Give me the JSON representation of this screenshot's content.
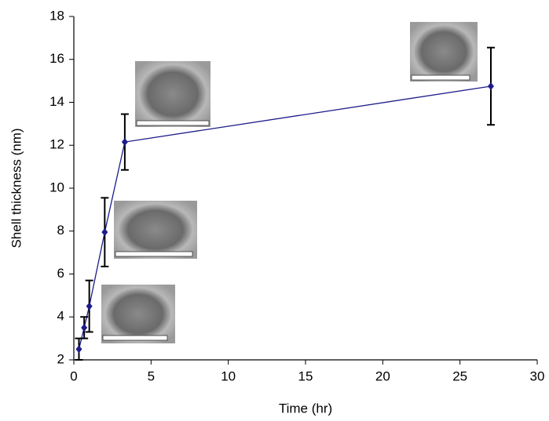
{
  "chart_data": {
    "type": "line",
    "x_label": "Time (hr)",
    "y_label": "Shell thickness (nm)",
    "x": [
      0.33,
      0.67,
      1,
      2,
      3.3,
      27
    ],
    "series": [
      {
        "color": "#1c1c8a",
        "values": [
          2.5,
          3.5,
          4.5,
          7.95,
          12.15,
          14.75
        ],
        "errors": [
          0.5,
          0.5,
          1.2,
          1.6,
          1.3,
          1.8
        ]
      }
    ],
    "xlim": [
      0,
      30
    ],
    "xticks": [
      0,
      5,
      10,
      15,
      20,
      25,
      30
    ],
    "ylim": [
      2,
      18
    ],
    "yticks": [
      2,
      4,
      6,
      8,
      10,
      12,
      14,
      16,
      18
    ],
    "grid": false
  }
}
